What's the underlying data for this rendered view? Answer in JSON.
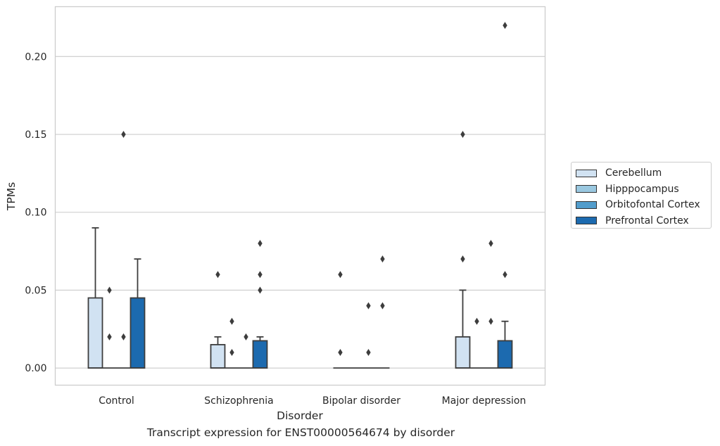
{
  "chart_data": {
    "type": "box",
    "title": "",
    "caption": "Transcript expression for ENST00000564674 by disorder",
    "xlabel": "Disorder",
    "ylabel": "TPMs",
    "ylim": [
      -0.011,
      0.232
    ],
    "yticks": [
      "0.00",
      "0.05",
      "0.10",
      "0.15",
      "0.20"
    ],
    "grid": "horizontal",
    "legend_position": "right",
    "categories": [
      "Control",
      "Schizophrenia",
      "Bipolar disorder",
      "Major depression"
    ],
    "series": [
      {
        "name": "Cerebellum",
        "color": "#d1e2f2",
        "boxes": [
          {
            "q1": 0.0,
            "median": 0.0,
            "q3": 0.045,
            "whisker_low": 0.0,
            "whisker_high": 0.09,
            "outliers": []
          },
          {
            "q1": 0.0,
            "median": 0.0,
            "q3": 0.015,
            "whisker_low": 0.0,
            "whisker_high": 0.02,
            "outliers": [
              0.06
            ]
          },
          {
            "q1": 0.0,
            "median": 0.0,
            "q3": 0.0,
            "whisker_low": 0.0,
            "whisker_high": 0.0,
            "outliers": [
              0.06,
              0.01
            ]
          },
          {
            "q1": 0.0,
            "median": 0.0,
            "q3": 0.02,
            "whisker_low": 0.0,
            "whisker_high": 0.05,
            "outliers": [
              0.15,
              0.07
            ]
          }
        ]
      },
      {
        "name": "Hipppocampus",
        "color": "#9ac8e0",
        "boxes": [
          {
            "q1": 0.0,
            "median": 0.0,
            "q3": 0.0,
            "whisker_low": 0.0,
            "whisker_high": 0.0,
            "outliers": [
              0.05,
              0.02
            ]
          },
          {
            "q1": 0.0,
            "median": 0.0,
            "q3": 0.0,
            "whisker_low": 0.0,
            "whisker_high": 0.0,
            "outliers": [
              0.03,
              0.01
            ]
          },
          {
            "q1": 0.0,
            "median": 0.0,
            "q3": 0.0,
            "whisker_low": 0.0,
            "whisker_high": 0.0,
            "outliers": []
          },
          {
            "q1": 0.0,
            "median": 0.0,
            "q3": 0.0,
            "whisker_low": 0.0,
            "whisker_high": 0.0,
            "outliers": [
              0.03
            ]
          }
        ]
      },
      {
        "name": "Orbitofontal Cortex",
        "color": "#529dcc",
        "boxes": [
          {
            "q1": 0.0,
            "median": 0.0,
            "q3": 0.0,
            "whisker_low": 0.0,
            "whisker_high": 0.0,
            "outliers": [
              0.15,
              0.02
            ]
          },
          {
            "q1": 0.0,
            "median": 0.0,
            "q3": 0.0,
            "whisker_low": 0.0,
            "whisker_high": 0.0,
            "outliers": [
              0.02
            ]
          },
          {
            "q1": 0.0,
            "median": 0.0,
            "q3": 0.0,
            "whisker_low": 0.0,
            "whisker_high": 0.0,
            "outliers": [
              0.04,
              0.01
            ]
          },
          {
            "q1": 0.0,
            "median": 0.0,
            "q3": 0.0,
            "whisker_low": 0.0,
            "whisker_high": 0.0,
            "outliers": [
              0.08,
              0.03
            ]
          }
        ]
      },
      {
        "name": "Prefrontal Cortex",
        "color": "#1c6aaf",
        "boxes": [
          {
            "q1": 0.0,
            "median": 0.0,
            "q3": 0.045,
            "whisker_low": 0.0,
            "whisker_high": 0.07,
            "outliers": []
          },
          {
            "q1": 0.0,
            "median": 0.0,
            "q3": 0.0175,
            "whisker_low": 0.0,
            "whisker_high": 0.02,
            "outliers": [
              0.08,
              0.06,
              0.05
            ]
          },
          {
            "q1": 0.0,
            "median": 0.0,
            "q3": 0.0,
            "whisker_low": 0.0,
            "whisker_high": 0.0,
            "outliers": [
              0.07,
              0.04
            ]
          },
          {
            "q1": 0.0,
            "median": 0.0,
            "q3": 0.0175,
            "whisker_low": 0.0,
            "whisker_high": 0.03,
            "outliers": [
              0.22,
              0.06
            ]
          }
        ]
      }
    ]
  }
}
